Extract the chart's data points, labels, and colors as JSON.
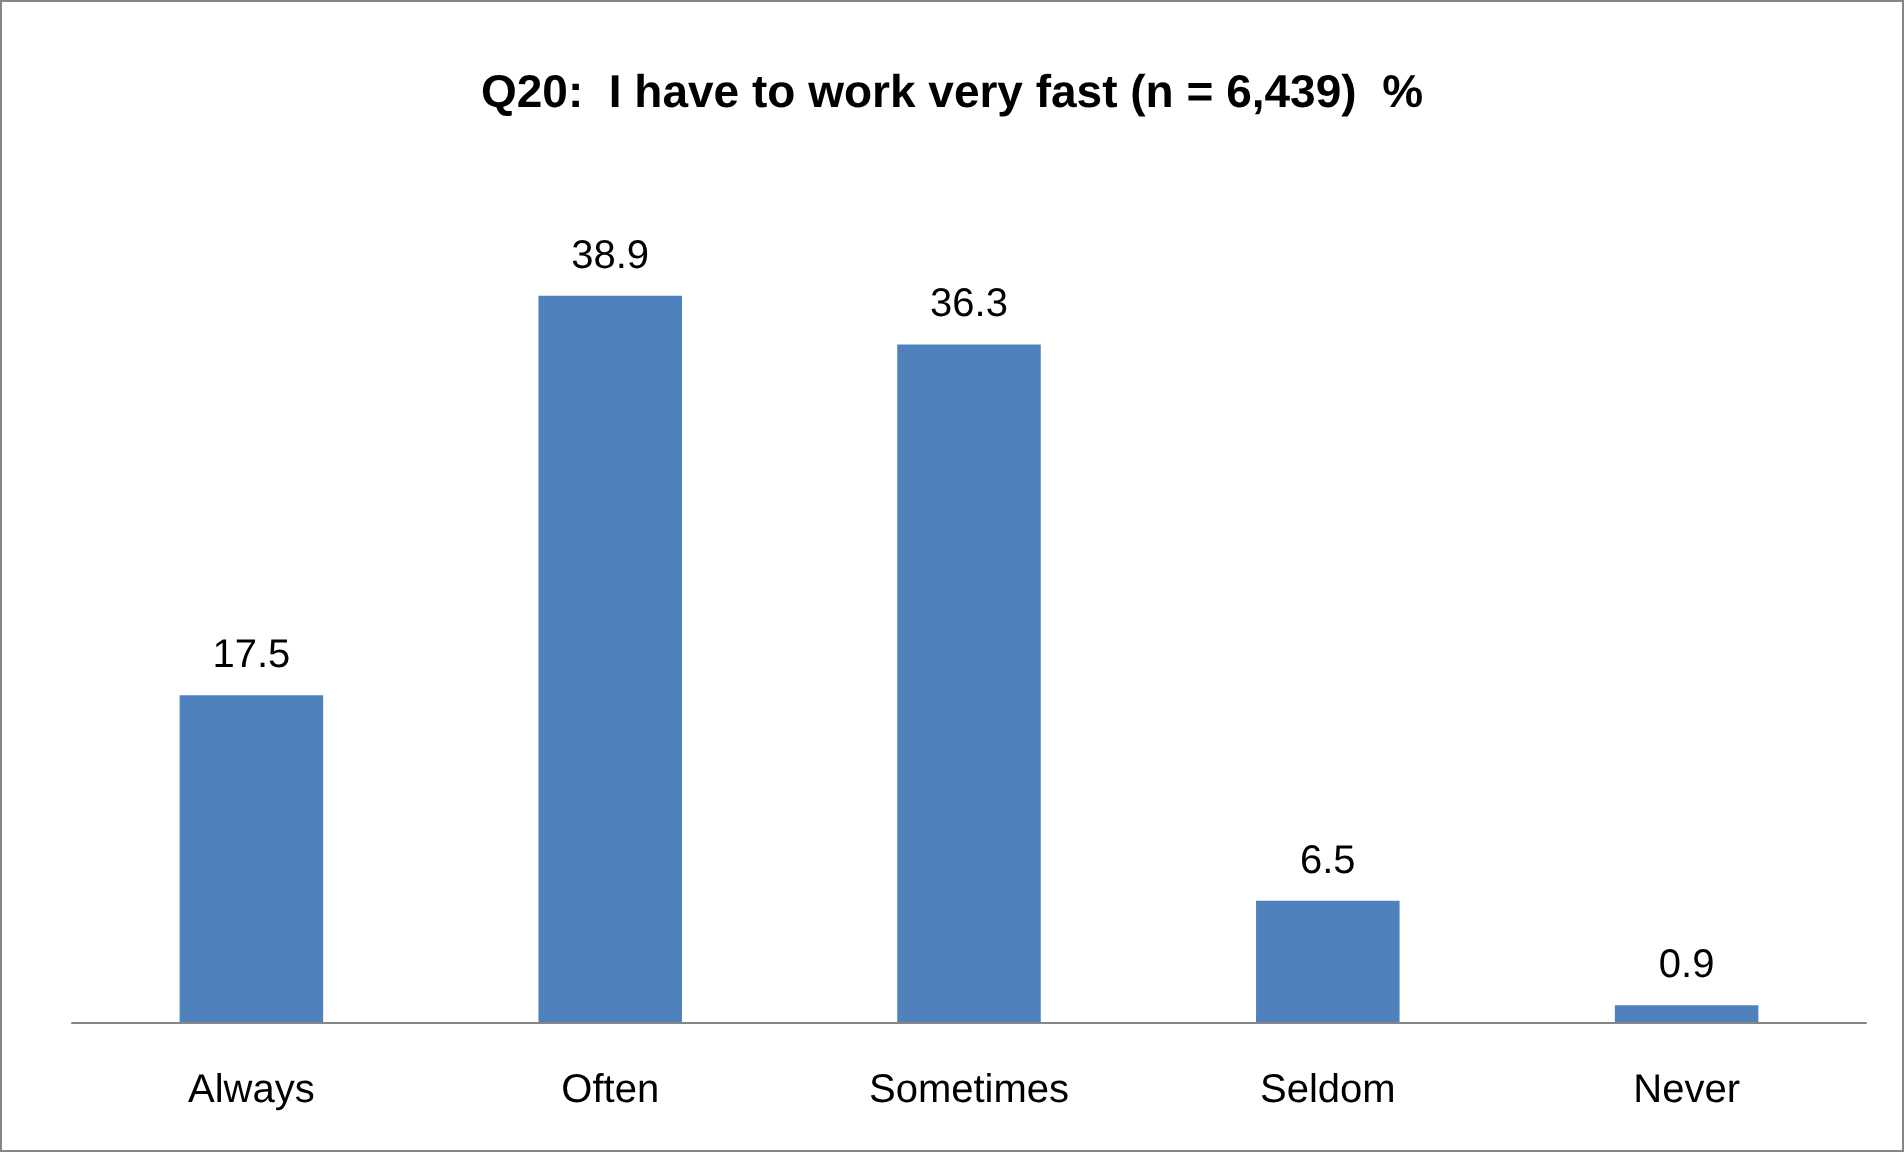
{
  "chart_data": {
    "type": "bar",
    "title": "Q20:  I have to work very fast (n = 6,439)  %",
    "categories": [
      "Always",
      "Often",
      "Sometimes",
      "Seldom",
      "Never"
    ],
    "values": [
      17.5,
      38.9,
      36.3,
      6.5,
      0.9
    ],
    "color": "#4f81bd",
    "data_labels": true
  }
}
